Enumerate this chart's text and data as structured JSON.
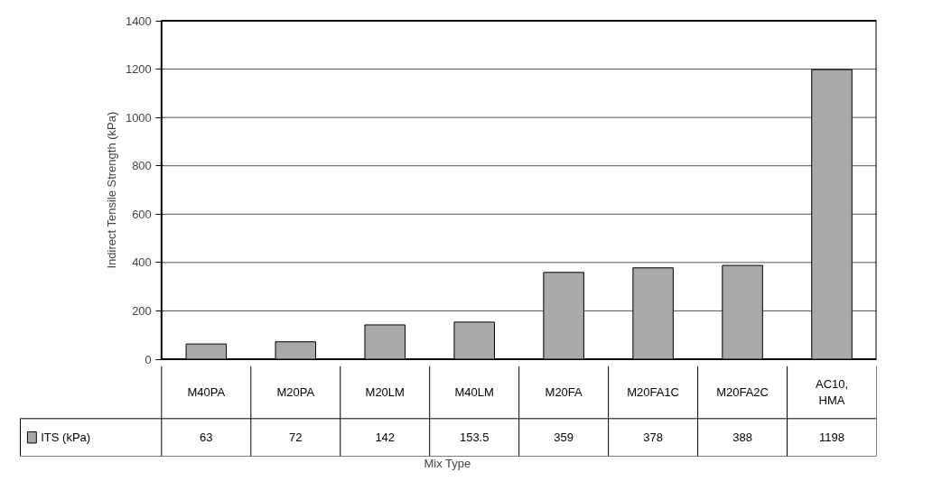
{
  "chart_data": {
    "type": "bar",
    "ylabel": "Indirect Tensile Strength (kPa)",
    "xlabel": "Mix Type",
    "categories": [
      "M40PA",
      "M20PA",
      "M20LM",
      "M40LM",
      "M20FA",
      "M20FA1C",
      "M20FA2C",
      "AC10, HMA"
    ],
    "series": [
      {
        "name": "ITS (kPa)",
        "color": "#a9a9a9",
        "values": [
          63,
          72,
          142,
          153.5,
          359,
          378,
          388,
          1198
        ]
      }
    ],
    "ylim": [
      0,
      1400
    ],
    "yticks": [
      0,
      200,
      400,
      600,
      800,
      1000,
      1200,
      1400
    ],
    "grid": "y",
    "legend": "bottom left",
    "data_labels": true
  }
}
